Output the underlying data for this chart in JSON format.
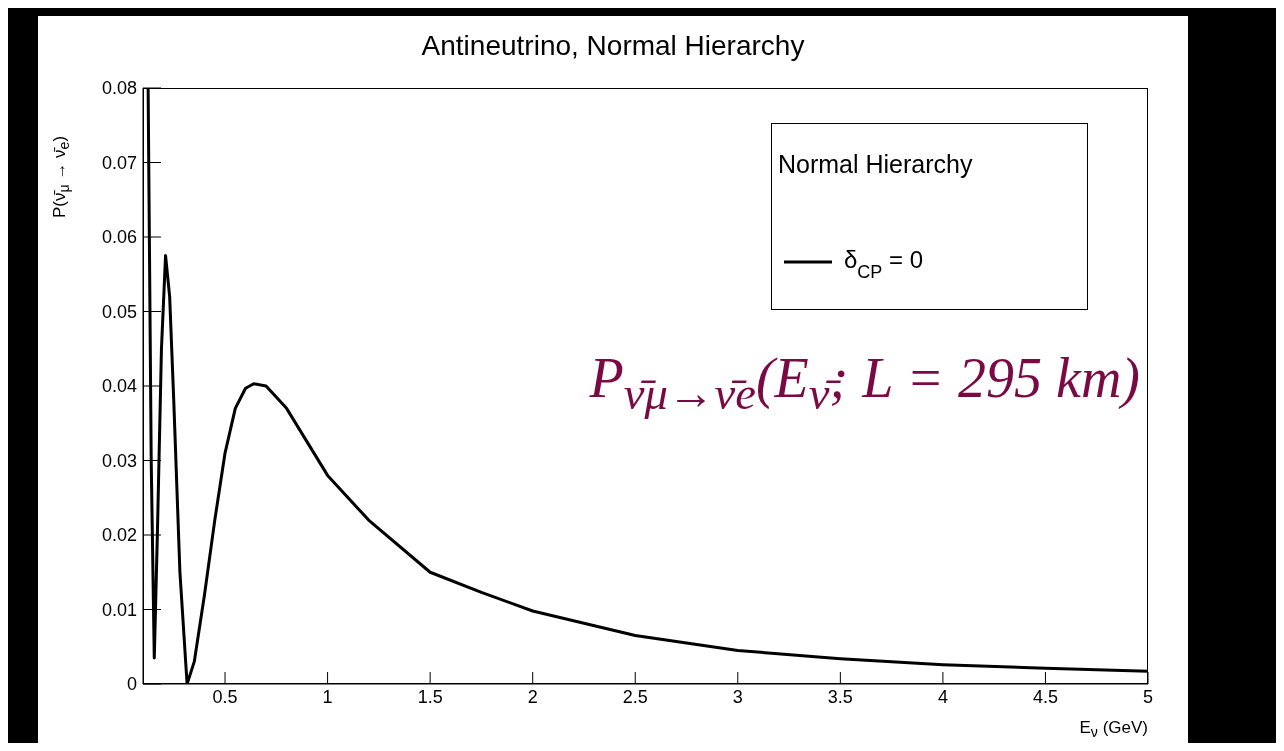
{
  "chart_data": {
    "type": "line",
    "title": "Antineutrino, Normal Hierarchy",
    "xlabel": "E$_{ν}$ (GeV)",
    "ylabel": "P(ν̄$_{μ}$ → ν̄$_{e}$)",
    "legend_title": "Normal Hierarchy",
    "legend": "top right",
    "annotations": [
      "P$_{ν̄μ→ν̄e}$(E$_{ν̄}$; L = 295 km)"
    ],
    "xlim": [
      0.1,
      5
    ],
    "xticks": [
      0.5,
      1,
      1.5,
      2,
      2.5,
      3,
      3.5,
      4,
      4.5,
      5
    ],
    "ylim": [
      0,
      0.08
    ],
    "yticks": [
      0,
      0.01,
      0.02,
      0.03,
      0.04,
      0.05,
      0.06,
      0.07,
      0.08
    ],
    "series": [
      {
        "name": "δ$_{CP}$ = 0",
        "color": "#000000",
        "x": [
          0.125,
          0.14,
          0.155,
          0.17,
          0.19,
          0.21,
          0.23,
          0.25,
          0.28,
          0.315,
          0.35,
          0.4,
          0.45,
          0.5,
          0.55,
          0.6,
          0.64,
          0.7,
          0.8,
          0.9,
          1,
          1.2,
          1.5,
          1.75,
          2,
          2.5,
          3,
          3.5,
          4,
          4.5,
          5
        ],
        "values": [
          0.08,
          0.03,
          0.0035,
          0.02,
          0.045,
          0.0575,
          0.052,
          0.038,
          0.015,
          0,
          0.003,
          0.012,
          0.022,
          0.031,
          0.037,
          0.0397,
          0.0403,
          0.04,
          0.037,
          0.0325,
          0.028,
          0.022,
          0.015,
          0.0123,
          0.0098,
          0.0065,
          0.0045,
          0.0034,
          0.0026,
          0.0021,
          0.0017
        ]
      }
    ]
  }
}
